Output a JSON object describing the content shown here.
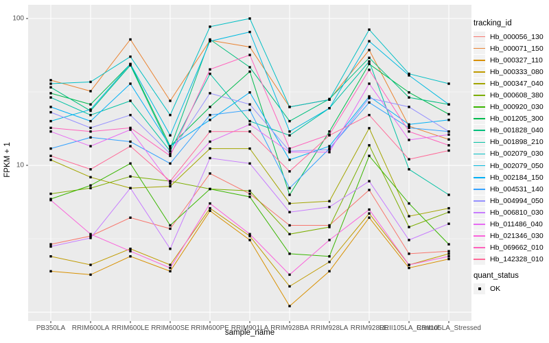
{
  "chart_data": {
    "type": "line",
    "title": "",
    "xlabel": "sample_name",
    "ylabel": "FPKM + 1",
    "y_scale": "log10",
    "y_ticks": [
      10,
      100
    ],
    "y_tick_labels": [
      "10",
      "100"
    ],
    "y_major_unlabeled": [
      1
    ],
    "y_minor": [
      3.162,
      31.623
    ],
    "ylim": [
      0.87,
      124
    ],
    "grid": true,
    "panel_bg": "#EBEBEB",
    "grid_color": "#FFFFFF",
    "point_shape": "filled-square",
    "point_color": "#000000",
    "legend_position": "right",
    "categories": [
      "PB350LA",
      "RRIM600LA",
      "RRIM600LE",
      "RRIM600SE",
      "RRIM600PE",
      "RRIM901LA",
      "RRIM928BA",
      "RRIM928LA",
      "RRIM928LE",
      "RRII105LA_Control",
      "RRII105LA_Stressed"
    ],
    "series": [
      {
        "name": "Hb_000056_130",
        "color": "#F8766D",
        "values": [
          2.9,
          3.3,
          4.4,
          3.7,
          8.8,
          6.4,
          3.9,
          3.9,
          6.8,
          2.5,
          2.6
        ]
      },
      {
        "name": "Hb_000071_150",
        "color": "#EA8331",
        "values": [
          38,
          32,
          72,
          27.5,
          71,
          64,
          25,
          28,
          61,
          18.5,
          15
        ]
      },
      {
        "name": "Hb_000327_110",
        "color": "#D89000",
        "values": [
          1.9,
          1.8,
          2.4,
          1.9,
          4.9,
          3.1,
          1.1,
          1.9,
          4.4,
          2.0,
          2.3
        ]
      },
      {
        "name": "Hb_000333_080",
        "color": "#C09B00",
        "values": [
          2.4,
          2.1,
          2.7,
          2.1,
          5.1,
          3.3,
          1.5,
          2.2,
          4.7,
          2.1,
          2.5
        ]
      },
      {
        "name": "Hb_000347_040",
        "color": "#A3A500",
        "values": [
          10.9,
          8.3,
          7.0,
          7.2,
          13,
          13,
          5.5,
          5.7,
          17.9,
          4.5,
          5.1
        ]
      },
      {
        "name": "Hb_000608_380",
        "color": "#7CAE00",
        "values": [
          6.4,
          7.0,
          8.4,
          7.8,
          6.9,
          6.7,
          3.4,
          3.8,
          13.7,
          3.8,
          4.8
        ]
      },
      {
        "name": "Hb_000920_030",
        "color": "#39B600",
        "values": [
          5.9,
          7.3,
          10.3,
          3.9,
          6.9,
          6.1,
          2.5,
          2.4,
          11.6,
          5.5,
          2.9
        ]
      },
      {
        "name": "Hb_001205_300",
        "color": "#00BB4E",
        "values": [
          31,
          26,
          49,
          13.5,
          25,
          43.5,
          6.3,
          17,
          49,
          31.4,
          22.3
        ]
      },
      {
        "name": "Hb_001828_040",
        "color": "#00BF7D",
        "values": [
          34,
          23.5,
          48,
          13,
          72,
          46.6,
          20,
          28.3,
          54,
          29,
          26
        ]
      },
      {
        "name": "Hb_001898_210",
        "color": "#00C1A3",
        "values": [
          29,
          22,
          27.5,
          12.5,
          42,
          20,
          16,
          24.5,
          51,
          9.4,
          6.3
        ]
      },
      {
        "name": "Hb_002079_030",
        "color": "#00BFC4",
        "values": [
          36,
          37,
          55,
          22,
          88,
          100,
          25,
          28,
          84,
          42,
          36
        ]
      },
      {
        "name": "Hb_002079_050",
        "color": "#00BAE0",
        "values": [
          20,
          24,
          49,
          16,
          70,
          81,
          17,
          24.5,
          70,
          41,
          26
        ]
      },
      {
        "name": "Hb_002184_150",
        "color": "#00B0F6",
        "values": [
          25,
          20,
          36,
          13.5,
          20.4,
          31.4,
          10.9,
          13.5,
          29.5,
          19,
          20.4
        ]
      },
      {
        "name": "Hb_004531_140",
        "color": "#35A2FF",
        "values": [
          13,
          15.5,
          14.5,
          10.3,
          22,
          23.8,
          7.0,
          13,
          26.8,
          18,
          17
        ]
      },
      {
        "name": "Hb_004994_050",
        "color": "#9590FF",
        "values": [
          23,
          18,
          22,
          12,
          31,
          26,
          12.5,
          12.8,
          28.7,
          25,
          17
        ]
      },
      {
        "name": "Hb_006810_030",
        "color": "#C77CFF",
        "values": [
          2.8,
          3.2,
          7.0,
          2.7,
          11.2,
          10.3,
          4.8,
          5.2,
          7.8,
          3.1,
          4.0
        ]
      },
      {
        "name": "Hb_011486_040",
        "color": "#E76BF3",
        "values": [
          17,
          13.5,
          17.5,
          7.5,
          14.5,
          19,
          12.3,
          12.3,
          36,
          14.9,
          16.2
        ]
      },
      {
        "name": "Hb_021346_030",
        "color": "#FA62DB",
        "values": [
          5.8,
          3.4,
          2.6,
          2.0,
          5.5,
          3.4,
          1.8,
          3.1,
          5.0,
          2.1,
          2.4
        ]
      },
      {
        "name": "Hb_069662_010",
        "color": "#FF62BC",
        "values": [
          18,
          17,
          18,
          11.6,
          45,
          56.5,
          13,
          16.2,
          44.7,
          17,
          13.7
        ]
      },
      {
        "name": "Hb_142328_010",
        "color": "#FF6A98",
        "values": [
          11.6,
          9.4,
          13.5,
          7.8,
          17,
          17,
          9.1,
          16,
          22,
          11,
          12.6
        ]
      }
    ]
  },
  "legend": {
    "tracking_title": "tracking_id",
    "quant_title": "quant_status",
    "quant_value": "OK",
    "key_bg": "#F2F2F2"
  }
}
